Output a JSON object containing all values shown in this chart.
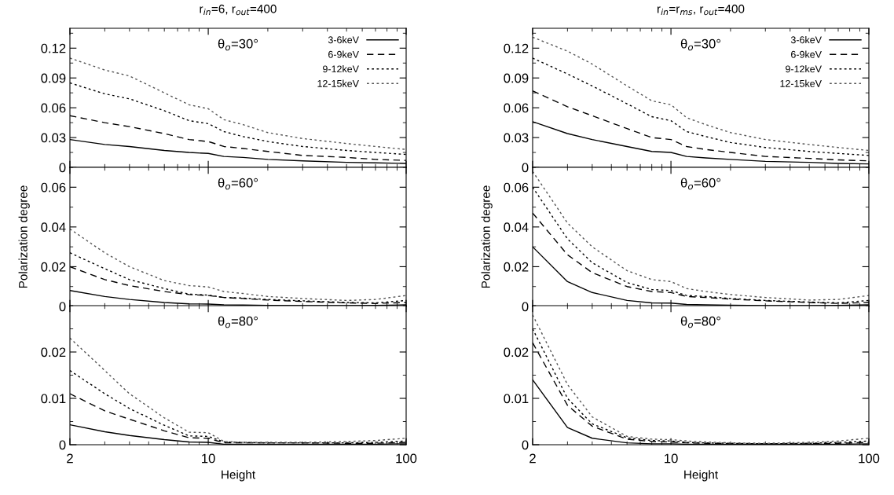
{
  "chart_data": [
    {
      "type": "line",
      "title": "r$_{in}$=6, r$_{out}$=400",
      "annotations": [
        "θ$_{o}$=30°"
      ],
      "log": "x",
      "xlim": [
        2,
        100
      ],
      "xticks": [
        2,
        10,
        100
      ],
      "ylim": [
        0,
        0.14
      ],
      "yticks": [
        0,
        0.03,
        0.06,
        0.09,
        0.12
      ],
      "tick_labels": "y",
      "legend": "top right",
      "x": [
        2,
        3,
        4,
        6,
        8,
        10,
        12,
        15,
        20,
        30,
        50,
        70,
        100
      ],
      "series": [
        {
          "name": "3-6keV",
          "color": "#000000",
          "line_style": "solid",
          "values": [
            0.028,
            0.023,
            0.021,
            0.017,
            0.015,
            0.014,
            0.011,
            0.01,
            0.008,
            0.0065,
            0.005,
            0.0045,
            0.004
          ]
        },
        {
          "name": "6-9keV",
          "color": "#000000",
          "line_style": "dashed",
          "values": [
            0.052,
            0.045,
            0.041,
            0.034,
            0.028,
            0.026,
            0.021,
            0.019,
            0.016,
            0.012,
            0.01,
            0.008,
            0.007
          ]
        },
        {
          "name": "9-12keV",
          "color": "#000000",
          "line_style": "dotted",
          "values": [
            0.085,
            0.074,
            0.069,
            0.057,
            0.047,
            0.044,
            0.036,
            0.031,
            0.026,
            0.021,
            0.017,
            0.015,
            0.013
          ]
        },
        {
          "name": "12-15keV",
          "color": "#555555",
          "line_style": "dotted",
          "values": [
            0.11,
            0.098,
            0.092,
            0.075,
            0.063,
            0.059,
            0.048,
            0.043,
            0.035,
            0.029,
            0.024,
            0.021,
            0.018
          ]
        }
      ]
    },
    {
      "type": "line",
      "title": "r$_{in}$=r$_{ms}$, r$_{out}$=400",
      "annotations": [
        "θ$_{o}$=30°"
      ],
      "log": "x",
      "xlim": [
        2,
        100
      ],
      "xticks": [
        2,
        10,
        100
      ],
      "ylim": [
        0,
        0.14
      ],
      "yticks": [
        0,
        0.03,
        0.06,
        0.09,
        0.12
      ],
      "tick_labels": "y",
      "legend": "top right",
      "x": [
        2,
        3,
        4,
        6,
        8,
        10,
        12,
        15,
        20,
        30,
        50,
        70,
        100
      ],
      "series": [
        {
          "name": "3-6keV",
          "color": "#000000",
          "line_style": "solid",
          "values": [
            0.046,
            0.034,
            0.028,
            0.021,
            0.016,
            0.015,
            0.011,
            0.0095,
            0.008,
            0.006,
            0.005,
            0.004,
            0.0035
          ]
        },
        {
          "name": "6-9keV",
          "color": "#000000",
          "line_style": "dashed",
          "values": [
            0.077,
            0.061,
            0.052,
            0.039,
            0.03,
            0.028,
            0.021,
            0.018,
            0.015,
            0.011,
            0.009,
            0.0075,
            0.0065
          ]
        },
        {
          "name": "9-12keV",
          "color": "#000000",
          "line_style": "dotted",
          "values": [
            0.11,
            0.094,
            0.082,
            0.064,
            0.051,
            0.047,
            0.036,
            0.031,
            0.025,
            0.02,
            0.016,
            0.014,
            0.012
          ]
        },
        {
          "name": "12-15keV",
          "color": "#555555",
          "line_style": "dotted",
          "values": [
            0.131,
            0.117,
            0.104,
            0.082,
            0.067,
            0.063,
            0.05,
            0.043,
            0.035,
            0.028,
            0.023,
            0.02,
            0.017
          ]
        }
      ]
    },
    {
      "type": "line",
      "ylabel": "Polarization degree",
      "annotations": [
        "θ$_{o}$=60°"
      ],
      "log": "x",
      "xlim": [
        2,
        100
      ],
      "xticks": [
        2,
        10,
        100
      ],
      "ylim": [
        0,
        0.07
      ],
      "yticks": [
        0,
        0.02,
        0.04,
        0.06
      ],
      "tick_labels": "y",
      "x": [
        2,
        3,
        4,
        6,
        8,
        10,
        12,
        15,
        20,
        30,
        50,
        70,
        100
      ],
      "series": [
        {
          "color": "#000000",
          "line_style": "solid",
          "values": [
            0.008,
            0.005,
            0.0035,
            0.002,
            0.0013,
            0.0012,
            0.0008,
            0.0007,
            0.0005,
            0.0004,
            0.0004,
            0.0005,
            0.0008
          ]
        },
        {
          "color": "#000000",
          "line_style": "dashed",
          "values": [
            0.02,
            0.0135,
            0.0105,
            0.0075,
            0.006,
            0.0055,
            0.0045,
            0.004,
            0.0032,
            0.0025,
            0.0018,
            0.0015,
            0.002
          ]
        },
        {
          "color": "#000000",
          "line_style": "dotted",
          "values": [
            0.027,
            0.019,
            0.0135,
            0.009,
            0.0062,
            0.0057,
            0.0045,
            0.0042,
            0.0035,
            0.0028,
            0.002,
            0.0018,
            0.003
          ]
        },
        {
          "color": "#555555",
          "line_style": "dotted",
          "values": [
            0.039,
            0.027,
            0.02,
            0.013,
            0.0105,
            0.0098,
            0.0075,
            0.0065,
            0.005,
            0.004,
            0.003,
            0.0035,
            0.0055
          ]
        }
      ]
    },
    {
      "type": "line",
      "ylabel": "Polarization degree",
      "annotations": [
        "θ$_{o}$=60°"
      ],
      "log": "x",
      "xlim": [
        2,
        100
      ],
      "xticks": [
        2,
        10,
        100
      ],
      "ylim": [
        0,
        0.07
      ],
      "yticks": [
        0,
        0.02,
        0.04,
        0.06
      ],
      "tick_labels": "y",
      "x": [
        2,
        3,
        4,
        6,
        8,
        10,
        12,
        15,
        20,
        30,
        50,
        70,
        100
      ],
      "series": [
        {
          "color": "#000000",
          "line_style": "solid",
          "values": [
            0.03,
            0.0125,
            0.007,
            0.003,
            0.0018,
            0.0017,
            0.001,
            0.0008,
            0.0006,
            0.0004,
            0.0004,
            0.0005,
            0.0008
          ]
        },
        {
          "color": "#000000",
          "line_style": "dashed",
          "values": [
            0.047,
            0.026,
            0.017,
            0.01,
            0.0075,
            0.007,
            0.005,
            0.0045,
            0.0037,
            0.0028,
            0.002,
            0.0015,
            0.002
          ]
        },
        {
          "color": "#000000",
          "line_style": "dotted",
          "values": [
            0.06,
            0.034,
            0.022,
            0.012,
            0.0085,
            0.008,
            0.0055,
            0.005,
            0.004,
            0.003,
            0.0022,
            0.0018,
            0.003
          ]
        },
        {
          "color": "#555555",
          "line_style": "dotted",
          "values": [
            0.068,
            0.042,
            0.03,
            0.018,
            0.0135,
            0.0125,
            0.009,
            0.0075,
            0.006,
            0.0045,
            0.0032,
            0.0035,
            0.0055
          ]
        }
      ]
    },
    {
      "type": "line",
      "xlabel": "Height",
      "annotations": [
        "θ$_{o}$=80°"
      ],
      "log": "x",
      "xlim": [
        2,
        100
      ],
      "xticks": [
        2,
        10,
        100
      ],
      "ylim": [
        0,
        0.03
      ],
      "yticks": [
        0,
        0.01,
        0.02
      ],
      "x": [
        2,
        3,
        4,
        6,
        8,
        10,
        12,
        15,
        20,
        30,
        50,
        70,
        100
      ],
      "series": [
        {
          "color": "#000000",
          "line_style": "solid",
          "values": [
            0.0043,
            0.0028,
            0.002,
            0.0011,
            0.0006,
            0.0005,
            0.0001,
            0.0001,
            0.0001,
            0.0001,
            0.0001,
            0.0001,
            0.0002
          ]
        },
        {
          "color": "#000000",
          "line_style": "dashed",
          "values": [
            0.011,
            0.0073,
            0.0055,
            0.003,
            0.0015,
            0.0014,
            0.0004,
            0.0004,
            0.0004,
            0.0004,
            0.0003,
            0.0003,
            0.0005
          ]
        },
        {
          "color": "#000000",
          "line_style": "dotted",
          "values": [
            0.016,
            0.011,
            0.0078,
            0.0042,
            0.0019,
            0.0018,
            0.0006,
            0.0005,
            0.0004,
            0.0004,
            0.0004,
            0.0005,
            0.0008
          ]
        },
        {
          "color": "#555555",
          "line_style": "dotted",
          "values": [
            0.023,
            0.016,
            0.011,
            0.0058,
            0.0027,
            0.0026,
            0.0007,
            0.0005,
            0.0005,
            0.0005,
            0.0007,
            0.0009,
            0.0014
          ]
        }
      ]
    },
    {
      "type": "line",
      "xlabel": "Height",
      "annotations": [
        "θ$_{o}$=80°"
      ],
      "log": "x",
      "xlim": [
        2,
        100
      ],
      "xticks": [
        2,
        10,
        100
      ],
      "ylim": [
        0,
        0.03
      ],
      "yticks": [
        0,
        0.01,
        0.02
      ],
      "x": [
        2,
        3,
        4,
        6,
        8,
        10,
        12,
        15,
        20,
        30,
        50,
        70,
        100
      ],
      "series": [
        {
          "color": "#000000",
          "line_style": "solid",
          "values": [
            0.014,
            0.0037,
            0.0014,
            0.0004,
            0.0002,
            0.0002,
            0.0001,
            0.0001,
            0.0001,
            0.0001,
            0.0001,
            0.0001,
            0.0002
          ]
        },
        {
          "color": "#000000",
          "line_style": "dashed",
          "values": [
            0.022,
            0.0085,
            0.004,
            0.0012,
            0.0007,
            0.0006,
            0.0004,
            0.0003,
            0.0002,
            0.0002,
            0.0002,
            0.0003,
            0.0005
          ]
        },
        {
          "color": "#000000",
          "line_style": "dotted",
          "values": [
            0.025,
            0.01,
            0.0045,
            0.0015,
            0.0009,
            0.0008,
            0.0005,
            0.0004,
            0.0003,
            0.0002,
            0.0003,
            0.0005,
            0.0008
          ]
        },
        {
          "color": "#555555",
          "line_style": "dotted",
          "values": [
            0.028,
            0.013,
            0.006,
            0.0018,
            0.0012,
            0.0011,
            0.0008,
            0.0006,
            0.0004,
            0.0003,
            0.0005,
            0.0008,
            0.0014
          ]
        }
      ]
    }
  ]
}
